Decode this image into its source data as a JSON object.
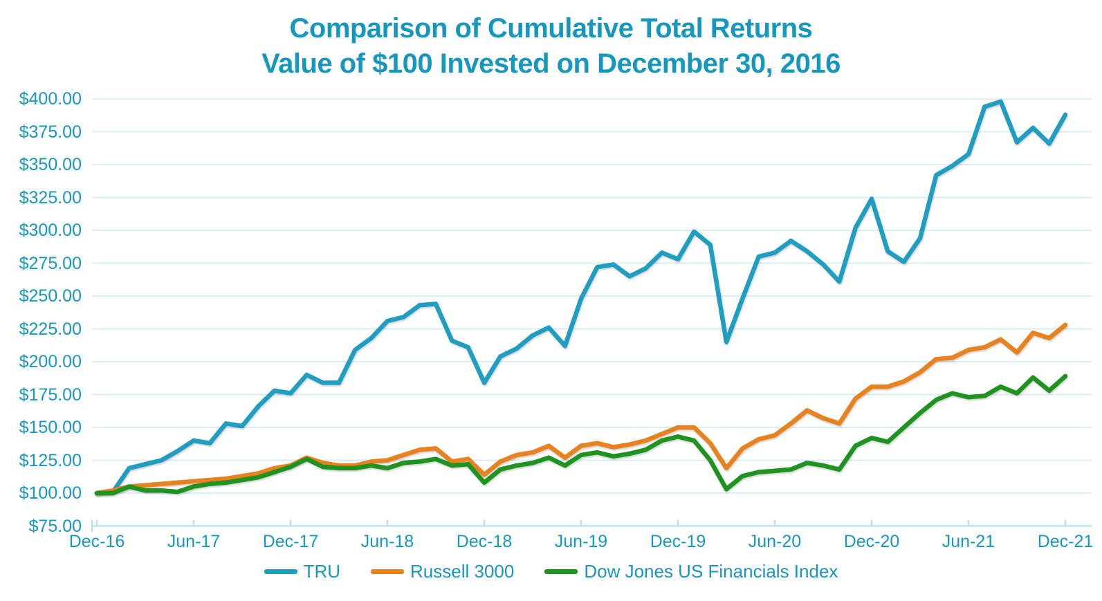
{
  "title": {
    "line1": "Comparison of Cumulative Total Returns",
    "line2": "Value of $100 Invested on December 30, 2016"
  },
  "colors": {
    "text": "#1697BE",
    "gridline": "#D8EDF4",
    "axis": "#BCE0ED",
    "background": "#FFFFFF"
  },
  "legend": [
    {
      "label": "TRU",
      "color": "#1F9EC1"
    },
    {
      "label": "Russell 3000",
      "color": "#E8821E"
    },
    {
      "label": "Dow Jones US Financials Index",
      "color": "#1E9320"
    }
  ],
  "chart_data": {
    "type": "line",
    "title": "Comparison of Cumulative Total Returns — Value of $100 Invested on December 30, 2016",
    "xlabel": "",
    "ylabel": "",
    "grid": "horizontal",
    "legend_position": "bottom",
    "ylim": [
      75,
      400
    ],
    "y_tick_step": 25,
    "y_tick_labels": [
      "$400.00",
      "$375.00",
      "$350.00",
      "$325.00",
      "$300.00",
      "$275.00",
      "$250.00",
      "$225.00",
      "$200.00",
      "$175.00",
      "$150.00",
      "$125.00",
      "$100.00",
      "$75.00"
    ],
    "x_tick_labels": [
      "Dec-16",
      "Jun-17",
      "Dec-17",
      "Jun-18",
      "Dec-18",
      "Jun-19",
      "Dec-19",
      "Jun-20",
      "Dec-20",
      "Jun-21",
      "Dec-21"
    ],
    "x_tick_indices": [
      0,
      6,
      12,
      18,
      24,
      30,
      36,
      42,
      48,
      54,
      60
    ],
    "x": [
      "Dec-16",
      "Jan-17",
      "Feb-17",
      "Mar-17",
      "Apr-17",
      "May-17",
      "Jun-17",
      "Jul-17",
      "Aug-17",
      "Sep-17",
      "Oct-17",
      "Nov-17",
      "Dec-17",
      "Jan-18",
      "Feb-18",
      "Mar-18",
      "Apr-18",
      "May-18",
      "Jun-18",
      "Jul-18",
      "Aug-18",
      "Sep-18",
      "Oct-18",
      "Nov-18",
      "Dec-18",
      "Jan-19",
      "Feb-19",
      "Mar-19",
      "Apr-19",
      "May-19",
      "Jun-19",
      "Jul-19",
      "Aug-19",
      "Sep-19",
      "Oct-19",
      "Nov-19",
      "Dec-19",
      "Jan-20",
      "Feb-20",
      "Mar-20",
      "Apr-20",
      "May-20",
      "Jun-20",
      "Jul-20",
      "Aug-20",
      "Sep-20",
      "Oct-20",
      "Nov-20",
      "Dec-20",
      "Jan-21",
      "Feb-21",
      "Mar-21",
      "Apr-21",
      "May-21",
      "Jun-21",
      "Jul-21",
      "Aug-21",
      "Sep-21",
      "Oct-21",
      "Nov-21",
      "Dec-21"
    ],
    "series": [
      {
        "name": "TRU",
        "color": "#1F9EC1",
        "values": [
          100,
          101,
          119,
          122,
          125,
          132,
          140,
          138,
          153,
          151,
          166,
          178,
          176,
          190,
          184,
          184,
          209,
          218,
          231,
          234,
          243,
          244,
          216,
          211,
          184,
          204,
          210,
          220,
          226,
          212,
          248,
          272,
          274,
          265,
          271,
          283,
          278,
          299,
          289,
          215,
          248,
          280,
          283,
          292,
          284,
          274,
          261,
          302,
          324,
          284,
          276,
          294,
          342,
          349,
          358,
          394,
          398,
          367,
          378,
          366,
          388
        ]
      },
      {
        "name": "Russell 3000",
        "color": "#E8821E",
        "values": [
          100,
          102,
          105,
          106,
          107,
          108,
          109,
          110,
          111,
          113,
          115,
          119,
          121,
          127,
          123,
          121,
          121,
          124,
          125,
          129,
          133,
          134,
          124,
          126,
          114,
          124,
          129,
          131,
          136,
          127,
          136,
          138,
          135,
          137,
          140,
          145,
          150,
          150,
          138,
          119,
          134,
          141,
          144,
          153,
          163,
          157,
          153,
          172,
          181,
          181,
          185,
          192,
          202,
          203,
          209,
          211,
          217,
          207,
          222,
          218,
          228
        ]
      },
      {
        "name": "Dow Jones US Financials Index",
        "color": "#1E9320",
        "values": [
          100,
          100,
          105,
          102,
          102,
          101,
          105,
          107,
          108,
          110,
          112,
          116,
          120,
          126,
          120,
          119,
          119,
          121,
          119,
          123,
          124,
          126,
          121,
          122,
          108,
          118,
          121,
          123,
          127,
          121,
          129,
          131,
          128,
          130,
          133,
          140,
          143,
          140,
          125,
          103,
          113,
          116,
          117,
          118,
          123,
          121,
          118,
          136,
          142,
          139,
          150,
          161,
          171,
          176,
          173,
          174,
          181,
          176,
          188,
          178,
          189
        ]
      }
    ]
  }
}
